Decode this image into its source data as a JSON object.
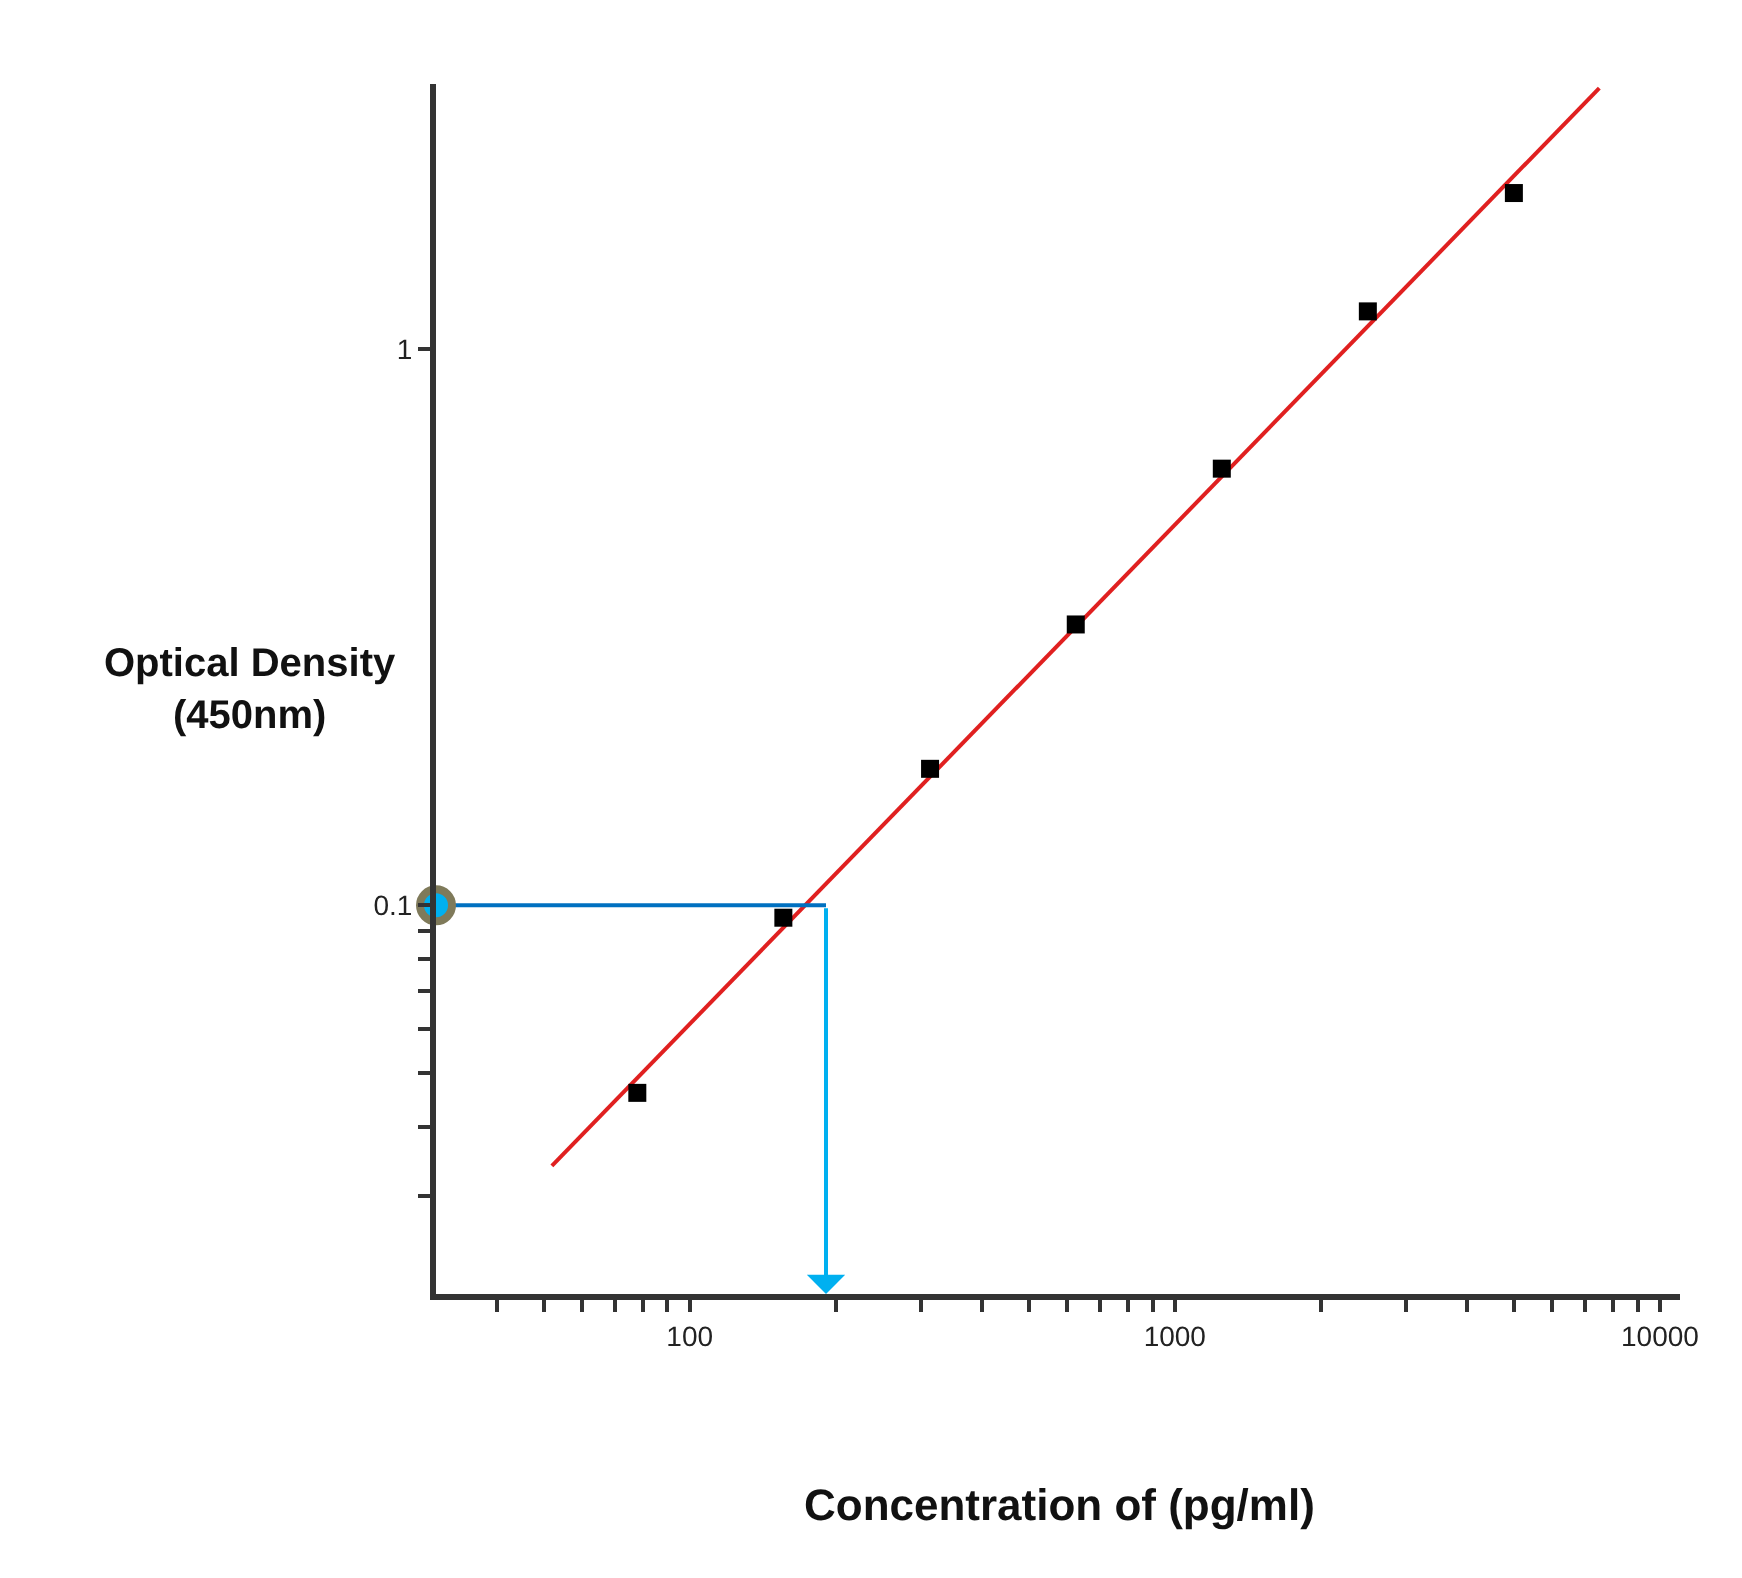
{
  "chart_data": {
    "type": "scatter",
    "xlabel": "Concentration of (pg/ml)",
    "ylabel": "Optical Density\n(450nm)",
    "log": "xy",
    "xlim": [
      30,
      11000
    ],
    "ylim": [
      0.02,
      3
    ],
    "xticks": [
      {
        "value": 40,
        "label": null
      },
      {
        "value": 50,
        "label": null
      },
      {
        "value": 60,
        "label": null
      },
      {
        "value": 70,
        "label": null
      },
      {
        "value": 80,
        "label": null
      },
      {
        "value": 90,
        "label": null
      },
      100,
      {
        "value": 200,
        "label": null
      },
      {
        "value": 300,
        "label": null
      },
      {
        "value": 400,
        "label": null
      },
      {
        "value": 500,
        "label": null
      },
      {
        "value": 600,
        "label": null
      },
      {
        "value": 700,
        "label": null
      },
      {
        "value": 800,
        "label": null
      },
      {
        "value": 900,
        "label": null
      },
      1000,
      {
        "value": 2000,
        "label": null
      },
      {
        "value": 3000,
        "label": null
      },
      {
        "value": 4000,
        "label": null
      },
      {
        "value": 5000,
        "label": null
      },
      {
        "value": 6000,
        "label": null
      },
      {
        "value": 7000,
        "label": null
      },
      {
        "value": 8000,
        "label": null
      },
      {
        "value": 9000,
        "label": null
      },
      10000
    ],
    "yticks": [
      {
        "value": 0.03,
        "label": null
      },
      {
        "value": 0.04,
        "label": null
      },
      {
        "value": 0.05,
        "label": null
      },
      {
        "value": 0.06,
        "label": null
      },
      {
        "value": 0.07,
        "label": null
      },
      {
        "value": 0.08,
        "label": null
      },
      {
        "value": 0.09,
        "label": null
      },
      0.1,
      1
    ],
    "series": [
      {
        "type": "line",
        "color": "#e02020",
        "x": [
          52,
          7500
        ],
        "values": [
          0.034,
          2.95
        ],
        "marker": "none",
        "line_style": "solid"
      },
      {
        "color": "#000000",
        "x": [
          78,
          156,
          313,
          625,
          1250,
          2500,
          5000
        ],
        "values": [
          0.046,
          0.095,
          0.176,
          0.32,
          0.61,
          1.17,
          1.91
        ],
        "marker": "square"
      },
      {
        "type": "line",
        "color": "#0070c0",
        "x": [
          30,
          191
        ],
        "values": [
          0.1,
          0.1
        ],
        "marker": "none",
        "line_style": "solid"
      },
      {
        "color": "#00b0f0",
        "x": [
          30
        ],
        "values": [
          0.1
        ],
        "marker": "circle"
      }
    ]
  }
}
